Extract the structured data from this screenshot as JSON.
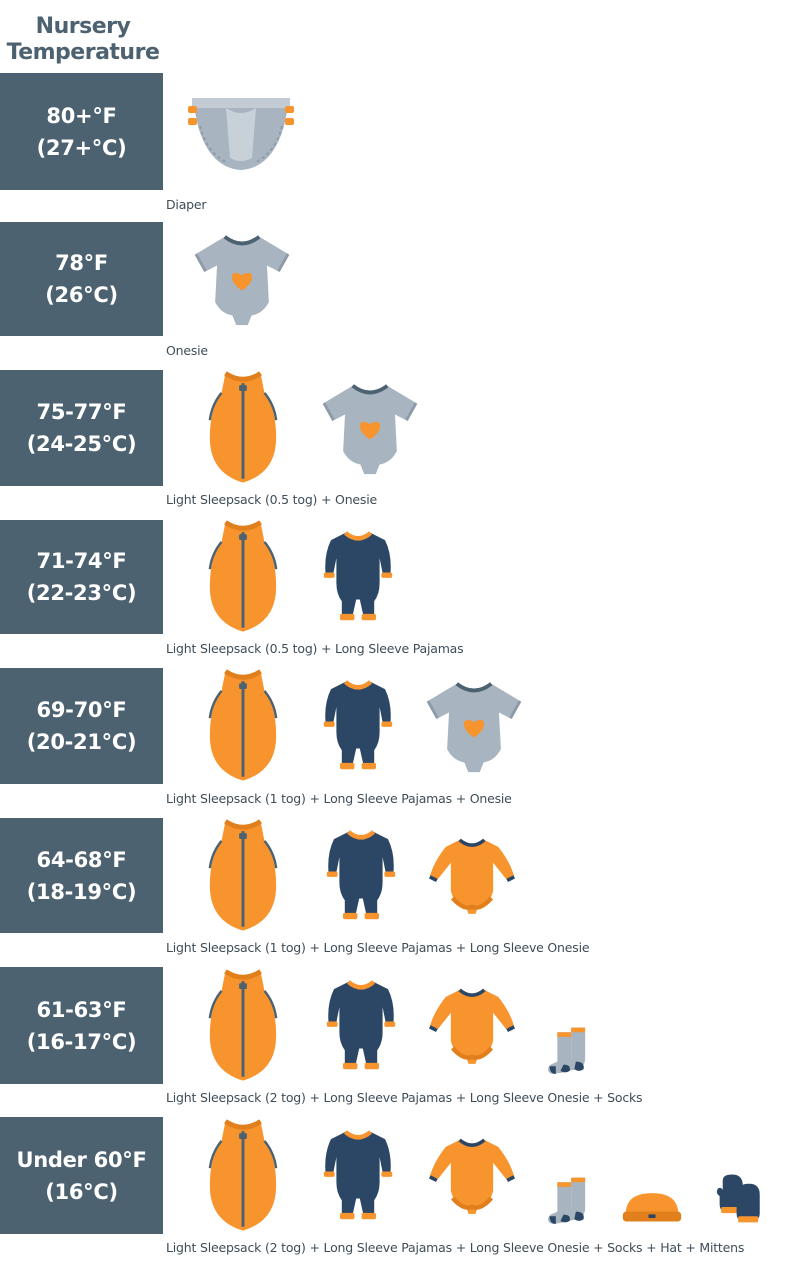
{
  "header": {
    "title_line1": "Nursery",
    "title_line2": "Temperature"
  },
  "colors": {
    "slate": "#4d6270",
    "orange": "#f7942d",
    "navy": "#2c4766",
    "gray": "#a8b4c0",
    "caption_text": "#3e4d58"
  },
  "icons": {
    "diaper": "diaper-icon",
    "onesie": "onesie-icon",
    "sleepsack": "sleepsack-icon",
    "pajamas": "pajamas-icon",
    "long_sleeve_onesie": "long-sleeve-onesie-icon",
    "socks": "socks-icon",
    "hat": "hat-icon",
    "mittens": "mittens-icon"
  },
  "rows": [
    {
      "temp_f": "80+°F",
      "temp_c": "(27+°C)",
      "caption": "Diaper",
      "items": [
        "diaper"
      ]
    },
    {
      "temp_f": "78°F",
      "temp_c": "(26°C)",
      "caption": "Onesie",
      "items": [
        "onesie"
      ]
    },
    {
      "temp_f": "75-77°F",
      "temp_c": "(24-25°C)",
      "caption": "Light Sleepsack (0.5 tog) + Onesie",
      "items": [
        "sleepsack",
        "onesie"
      ]
    },
    {
      "temp_f": "71-74°F",
      "temp_c": "(22-23°C)",
      "caption": "Light Sleepsack (0.5 tog) + Long Sleeve Pajamas",
      "items": [
        "sleepsack",
        "pajamas"
      ]
    },
    {
      "temp_f": "69-70°F",
      "temp_c": "(20-21°C)",
      "caption": "Light Sleepsack (1 tog) + Long Sleeve Pajamas + Onesie",
      "items": [
        "sleepsack",
        "pajamas",
        "onesie"
      ]
    },
    {
      "temp_f": "64-68°F",
      "temp_c": "(18-19°C)",
      "caption": "Light Sleepsack (1 tog) + Long Sleeve Pajamas + Long Sleeve Onesie",
      "items": [
        "sleepsack",
        "pajamas",
        "long_sleeve_onesie"
      ]
    },
    {
      "temp_f": "61-63°F",
      "temp_c": "(16-17°C)",
      "caption": "Light Sleepsack (2 tog) + Long Sleeve Pajamas + Long Sleeve Onesie + Socks",
      "items": [
        "sleepsack",
        "pajamas",
        "long_sleeve_onesie",
        "socks"
      ]
    },
    {
      "temp_f": "Under 60°F",
      "temp_c": "(16°C)",
      "caption": "Light Sleepsack (2 tog) + Long Sleeve Pajamas + Long Sleeve Onesie  + Socks + Hat + Mittens",
      "items": [
        "sleepsack",
        "pajamas",
        "long_sleeve_onesie",
        "socks",
        "hat",
        "mittens"
      ]
    }
  ]
}
